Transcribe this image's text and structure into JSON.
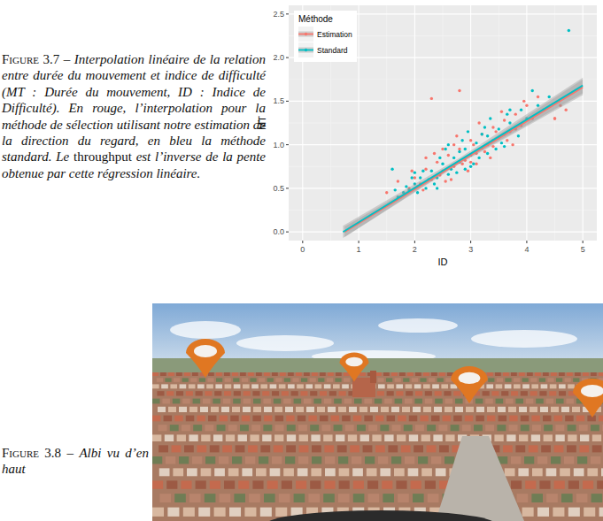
{
  "chart_data": {
    "type": "scatter",
    "x_label": "ID",
    "y_label": "MT",
    "legend_title": "Méthode",
    "legend": "top-left",
    "grid": true,
    "xlim": [
      -0.25,
      5.25
    ],
    "xticks": [
      0,
      1,
      2,
      3,
      4,
      5
    ],
    "ylim": [
      -0.1,
      2.6
    ],
    "yticks": [
      {
        "value": 0,
        "label": "0.0"
      },
      {
        "value": 0.5,
        "label": "0.5"
      },
      {
        "value": 1,
        "label": "1.0"
      },
      {
        "value": 1.5,
        "label": "1.5"
      },
      {
        "value": 2,
        "label": "2.0"
      },
      {
        "value": 2.5,
        "label": "2.5"
      }
    ],
    "series": [
      {
        "name": "Estimation",
        "color": "#F8766D",
        "marker": "circle",
        "x": [
          1.5,
          1.7,
          1.9,
          2.0,
          2.1,
          2.2,
          2.3,
          2.4,
          2.5,
          2.6,
          2.7,
          2.8,
          2.9,
          3.0,
          3.1,
          3.2,
          3.3,
          3.4,
          3.5,
          3.6,
          3.7,
          3.8,
          3.9,
          4.0,
          4.1,
          4.3,
          4.5,
          4.6,
          1.75,
          1.95,
          2.15,
          2.35,
          2.55,
          2.75,
          2.95,
          3.15,
          3.35,
          3.55,
          3.75,
          3.95,
          2.3,
          2.8,
          4.5,
          2.05,
          2.45,
          2.65,
          2.85,
          3.05,
          3.25,
          3.45,
          3.65,
          2.5,
          3.0,
          3.4,
          2.2,
          3.8,
          4.2,
          4.7,
          2.7,
          3.1
        ],
        "values": [
          0.45,
          0.58,
          0.5,
          0.62,
          0.55,
          0.72,
          0.6,
          0.8,
          0.7,
          0.88,
          0.75,
          0.95,
          0.82,
          1.05,
          0.9,
          1.12,
          1.0,
          1.2,
          1.08,
          1.28,
          1.15,
          1.35,
          1.22,
          1.45,
          1.3,
          1.4,
          1.3,
          1.45,
          0.4,
          0.7,
          0.48,
          0.9,
          0.58,
          1.1,
          0.7,
          1.25,
          0.85,
          1.38,
          1.0,
          1.5,
          1.53,
          1.62,
          1.3,
          0.52,
          0.65,
          0.6,
          0.78,
          1.0,
          0.92,
          1.15,
          1.05,
          0.95,
          0.8,
          0.98,
          0.85,
          1.18,
          1.55,
          1.4,
          1.0,
          0.78
        ],
        "fit": {
          "x": [
            0.75,
            2.8,
            5.0
          ],
          "values": [
            0.0,
            0.8,
            1.66
          ],
          "lower": [
            -0.06,
            0.78,
            1.57
          ],
          "upper": [
            0.06,
            0.82,
            1.75
          ]
        }
      },
      {
        "name": "Standard",
        "color": "#00BFC4",
        "marker": "circle",
        "x": [
          1.6,
          1.7,
          1.8,
          1.9,
          2.0,
          2.1,
          2.2,
          2.3,
          2.4,
          2.5,
          2.6,
          2.7,
          2.8,
          2.9,
          3.0,
          3.1,
          3.2,
          3.3,
          3.4,
          3.5,
          3.6,
          3.7,
          3.8,
          3.9,
          4.0,
          4.2,
          4.4,
          4.75,
          1.65,
          1.85,
          2.05,
          2.25,
          2.45,
          2.65,
          2.85,
          3.05,
          3.25,
          3.45,
          3.65,
          3.85,
          2.15,
          2.35,
          2.55,
          2.75,
          2.95,
          3.15,
          3.35,
          3.55,
          2.0,
          2.6,
          3.0,
          3.3,
          2.9,
          2.4,
          3.7,
          4.1,
          1.95,
          2.8,
          3.2,
          3.6
        ],
        "values": [
          0.72,
          0.4,
          0.45,
          0.48,
          0.55,
          0.62,
          0.5,
          0.7,
          0.62,
          0.78,
          0.66,
          0.85,
          0.8,
          0.95,
          0.88,
          1.02,
          0.96,
          1.1,
          1.05,
          1.18,
          1.12,
          1.25,
          1.2,
          1.4,
          1.3,
          1.45,
          1.55,
          2.31,
          0.48,
          0.52,
          0.45,
          0.6,
          0.85,
          0.72,
          1.05,
          0.78,
          1.2,
          0.95,
          1.35,
          1.1,
          0.7,
          0.55,
          0.95,
          0.68,
          1.15,
          0.85,
          1.3,
          1.02,
          0.68,
          1.0,
          0.75,
          0.9,
          0.72,
          0.5,
          1.4,
          1.62,
          0.62,
          0.92,
          1.12,
          0.98
        ],
        "fit": {
          "x": [
            0.72,
            2.8,
            5.0
          ],
          "values": [
            0.0,
            0.82,
            1.68
          ],
          "lower": [
            -0.07,
            0.79,
            1.59
          ],
          "upper": [
            0.07,
            0.85,
            1.77
          ]
        }
      }
    ]
  },
  "captions": [
    {
      "label": "Figure 3.7",
      "separator": "–",
      "parts": [
        {
          "text": "Interpolation linéaire de la relation entre durée du mouvement et indice de difficulté (MT : Durée du mouvement, ID : Indice de Difficulté). En rouge, l’interpolation pour la méthode de sélection utilisant notre estimation de la direction du regard, en bleu la méthode standard. Le",
          "style": "italic"
        },
        {
          "text": "throughput",
          "style": "normal"
        },
        {
          "text": "est l’inverse de la pente obtenue par cette régression linéaire.",
          "style": "italic"
        }
      ]
    },
    {
      "label": "Figure 3.8",
      "separator": "–",
      "parts": [
        {
          "text": "Albi vu d’en haut",
          "style": "italic"
        }
      ]
    }
  ]
}
